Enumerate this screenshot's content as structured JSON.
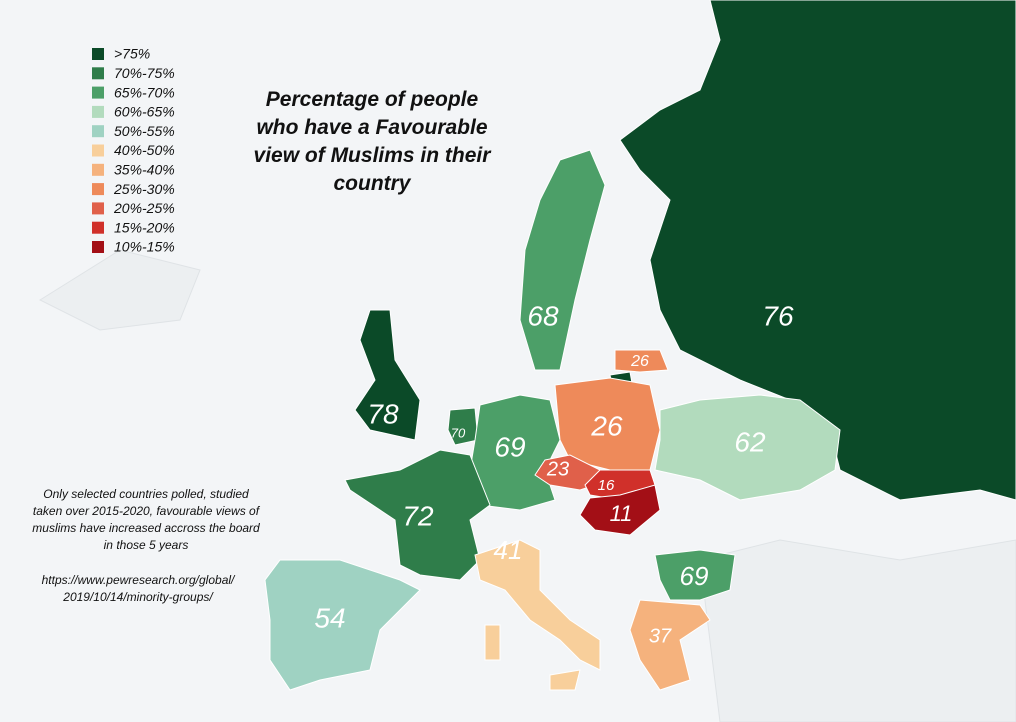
{
  "title": [
    "Percentage of people",
    "who have a Favourable",
    "view of Muslims in their",
    "country"
  ],
  "legend": [
    {
      "label": ">75%",
      "color": "#0b4a28"
    },
    {
      "label": "70%-75%",
      "color": "#2f7d4a"
    },
    {
      "label": "65%-70%",
      "color": "#4c9f68"
    },
    {
      "label": "60%-65%",
      "color": "#b2dbbd"
    },
    {
      "label": "50%-55%",
      "color": "#9fd2c2"
    },
    {
      "label": "40%-50%",
      "color": "#f8cf9b"
    },
    {
      "label": "35%-40%",
      "color": "#f5b27d"
    },
    {
      "label": "25%-30%",
      "color": "#ee8a5a"
    },
    {
      "label": "20%-25%",
      "color": "#e0604a"
    },
    {
      "label": "15%-20%",
      "color": "#d0302a"
    },
    {
      "label": "10%-15%",
      "color": "#a30f16"
    }
  ],
  "note": [
    "Only selected countries polled, studied",
    "taken over 2015-2020, favourable views of",
    "muslims have increased accross the board",
    "in those 5 years"
  ],
  "source": [
    "https://www.pewresearch.org/global/",
    "2019/10/14/minority-groups/"
  ],
  "countries": [
    {
      "value": 76,
      "color": "#0b4a28"
    },
    {
      "value": 68,
      "color": "#4c9f68"
    },
    {
      "value": 78,
      "color": "#0b4a28"
    },
    {
      "value": 70,
      "color": "#2f7d4a"
    },
    {
      "value": 69,
      "color": "#4c9f68"
    },
    {
      "value": 26,
      "color": "#ee8a5a"
    },
    {
      "value": 26,
      "color": "#ee8a5a"
    },
    {
      "value": 62,
      "color": "#b2dbbd"
    },
    {
      "value": 23,
      "color": "#e0604a"
    },
    {
      "value": 16,
      "color": "#d0302a"
    },
    {
      "value": 11,
      "color": "#a30f16"
    },
    {
      "value": 72,
      "color": "#2f7d4a"
    },
    {
      "value": 41,
      "color": "#f8cf9b"
    },
    {
      "value": 54,
      "color": "#9fd2c2"
    },
    {
      "value": 69,
      "color": "#4c9f68"
    },
    {
      "value": 37,
      "color": "#f5b27d"
    }
  ]
}
